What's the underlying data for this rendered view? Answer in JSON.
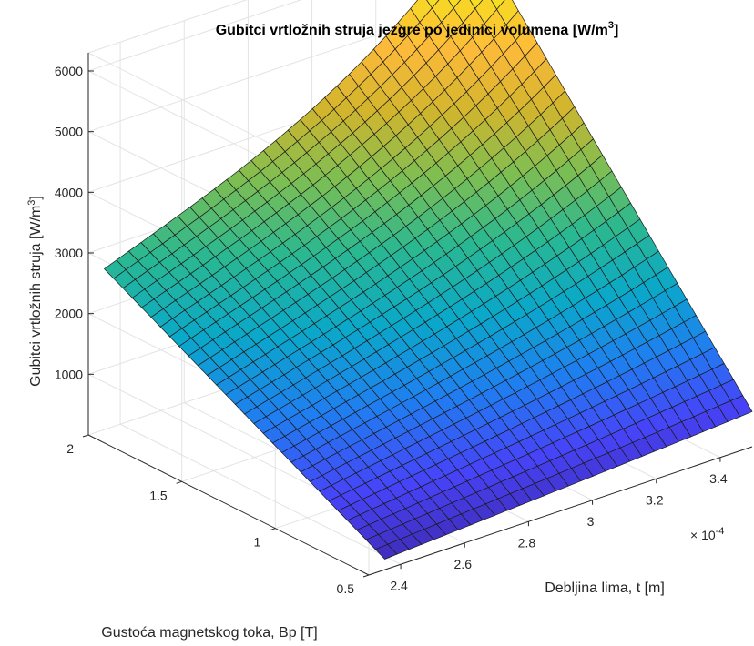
{
  "chart_data": {
    "type": "surface",
    "title": "Gubitci vrtložnih struja jezgre po jedinici volumena [W/m³]",
    "title_text": "Gubitci vrtložnih struja jezgre po jedinici volumena [W/m",
    "title_sup": "3",
    "title_end": "]",
    "xlabel": "Debljina lima, t [m]",
    "ylabel": "Gustoća magnetskog toka, Bp [T]",
    "zlabel": "Gubitci vrtložnih struja [W/m³]",
    "zlabel_text": "Gubitci vrtložnih struja [W/m",
    "zlabel_sup": "3",
    "zlabel_end": "]",
    "x_multiplier": "× 10",
    "x_exponent": "-4",
    "xlim": [
      2.3,
      3.5
    ],
    "ylim": [
      0.5,
      2
    ],
    "zlim": [
      0,
      6300
    ],
    "x_ticks": [
      "2.4",
      "2.6",
      "2.8",
      "3",
      "3.2",
      "3.4"
    ],
    "y_ticks": [
      "0.5",
      "1",
      "1.5",
      "2"
    ],
    "z_ticks": [
      "1000",
      "2000",
      "3000",
      "4000",
      "5000",
      "6000"
    ],
    "x_range": [
      2.35,
      3.5
    ],
    "y_range": [
      0.5,
      2
    ],
    "grid_size": [
      30,
      30
    ],
    "z_corners": {
      "x_min_y_min": 175,
      "x_max_y_min": 580,
      "x_min_y_max": 2650,
      "x_max_y_max": 6200
    },
    "colormap": "parula",
    "colormap_stops": [
      "#3E26A8",
      "#4743F8",
      "#1F7FF0",
      "#0AA8C9",
      "#2AB891",
      "#7DBE52",
      "#D2B52D",
      "#FDBA3A",
      "#F5E11F",
      "#F9FB0E"
    ],
    "grid": true
  }
}
